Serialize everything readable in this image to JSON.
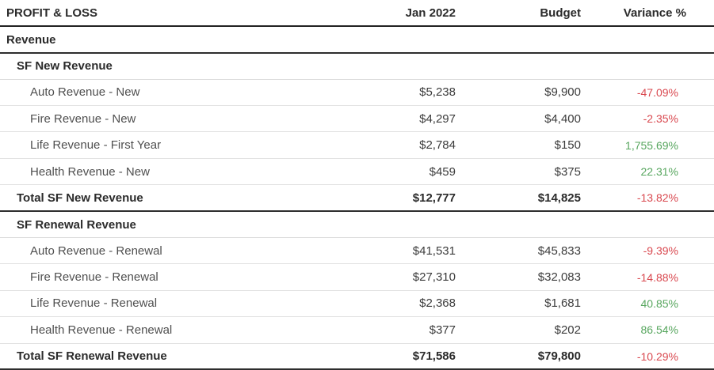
{
  "table": {
    "columns": [
      {
        "label": "PROFIT & LOSS"
      },
      {
        "label": "Jan 2022"
      },
      {
        "label": "Budget"
      },
      {
        "label": "Variance %"
      }
    ],
    "colors": {
      "negative": "#d9484f",
      "positive": "#57a65e",
      "header_text": "#2b2b2b",
      "row_text": "#4f4f4f",
      "dark_border": "#2d2d2d",
      "light_border": "#e2e2e2"
    },
    "rows": [
      {
        "label": "Revenue",
        "type": "section-root",
        "jan": "",
        "budget": "",
        "variance": "",
        "trend": ""
      },
      {
        "label": "SF New Revenue",
        "type": "section",
        "jan": "",
        "budget": "",
        "variance": "",
        "trend": ""
      },
      {
        "label": "Auto Revenue - New",
        "type": "data",
        "jan": "$5,238",
        "budget": "$9,900",
        "variance": "-47.09%",
        "trend": "negative"
      },
      {
        "label": "Fire Revenue - New",
        "type": "data",
        "jan": "$4,297",
        "budget": "$4,400",
        "variance": "-2.35%",
        "trend": "negative"
      },
      {
        "label": "Life Revenue - First Year",
        "type": "data",
        "jan": "$2,784",
        "budget": "$150",
        "variance": "1,755.69%",
        "trend": "positive"
      },
      {
        "label": "Health Revenue - New",
        "type": "data",
        "jan": "$459",
        "budget": "$375",
        "variance": "22.31%",
        "trend": "positive"
      },
      {
        "label": "Total SF New Revenue",
        "type": "total",
        "jan": "$12,777",
        "budget": "$14,825",
        "variance": "-13.82%",
        "trend": "negative"
      },
      {
        "label": "SF Renewal Revenue",
        "type": "section",
        "jan": "",
        "budget": "",
        "variance": "",
        "trend": ""
      },
      {
        "label": "Auto Revenue - Renewal",
        "type": "data",
        "jan": "$41,531",
        "budget": "$45,833",
        "variance": "-9.39%",
        "trend": "negative"
      },
      {
        "label": "Fire Revenue - Renewal",
        "type": "data",
        "jan": "$27,310",
        "budget": "$32,083",
        "variance": "-14.88%",
        "trend": "negative"
      },
      {
        "label": "Life Revenue - Renewal",
        "type": "data",
        "jan": "$2,368",
        "budget": "$1,681",
        "variance": "40.85%",
        "trend": "positive"
      },
      {
        "label": "Health Revenue - Renewal",
        "type": "data",
        "jan": "$377",
        "budget": "$202",
        "variance": "86.54%",
        "trend": "positive"
      },
      {
        "label": "Total SF Renewal Revenue",
        "type": "total",
        "jan": "$71,586",
        "budget": "$79,800",
        "variance": "-10.29%",
        "trend": "negative"
      }
    ]
  }
}
